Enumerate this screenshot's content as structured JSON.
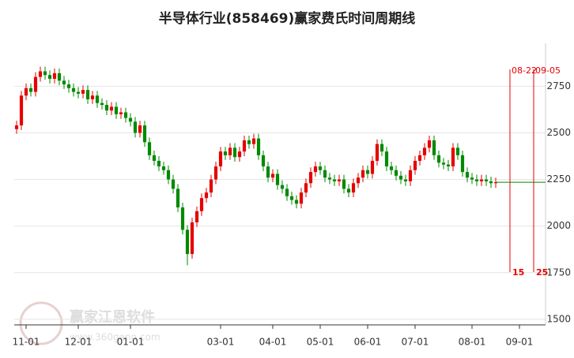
{
  "chart_data": {
    "type": "candlestick",
    "title": "半导体行业(858469)赢家费氏时间周期线",
    "watermark": {
      "brand": "赢家江恩软件",
      "url": "www.360gann.com"
    },
    "up_color": "#e60000",
    "down_color": "#008a00",
    "event_color": "#e60000",
    "grid": true,
    "ylim": [
      1470,
      2980
    ],
    "yticks": [
      1500,
      1750,
      2000,
      2250,
      2500,
      2750
    ],
    "categories": [
      null,
      null,
      "11-01",
      null,
      null,
      null,
      null,
      null,
      null,
      null,
      null,
      null,
      null,
      "12-01",
      null,
      null,
      null,
      null,
      null,
      null,
      null,
      null,
      null,
      null,
      "01-01",
      null,
      null,
      null,
      null,
      null,
      null,
      null,
      null,
      null,
      null,
      null,
      null,
      null,
      null,
      null,
      null,
      null,
      null,
      "03-01",
      null,
      null,
      null,
      null,
      null,
      null,
      null,
      null,
      null,
      null,
      "04-01",
      null,
      null,
      null,
      null,
      null,
      null,
      null,
      null,
      null,
      "05-01",
      null,
      null,
      null,
      null,
      null,
      null,
      null,
      null,
      null,
      "06-01",
      null,
      null,
      null,
      null,
      null,
      null,
      null,
      null,
      null,
      "07-01",
      null,
      null,
      null,
      null,
      null,
      null,
      null,
      null,
      null,
      null,
      null,
      "08-01",
      null,
      null,
      null,
      null,
      null,
      null,
      null,
      "08-22",
      null,
      "09-01",
      null,
      null,
      "09-05",
      null,
      null
    ],
    "open": [
      2520,
      2540,
      2700,
      2740,
      2720,
      2800,
      2830,
      2810,
      2790,
      2820,
      2780,
      2760,
      2740,
      2720,
      2710,
      2730,
      2680,
      2700,
      2660,
      2650,
      2620,
      2640,
      2600,
      2610,
      2580,
      2560,
      2500,
      2540,
      2450,
      2380,
      2350,
      2320,
      2300,
      2250,
      2200,
      2100,
      1980,
      1850,
      2020,
      2080,
      2150,
      2180,
      2250,
      2320,
      2400,
      2380,
      2420,
      2370,
      2400,
      2460,
      2440,
      2470,
      2380,
      2320,
      2260,
      2280,
      2220,
      2200,
      2160,
      2140,
      2120,
      2180,
      2230,
      2290,
      2320,
      2300,
      2260,
      2250,
      2240,
      2250,
      2200,
      2180,
      2230,
      2260,
      2300,
      2280,
      2350,
      2440,
      2400,
      2320,
      2300,
      2270,
      2250,
      2240,
      2300,
      2350,
      2380,
      2420,
      2460,
      2380,
      2340,
      2330,
      2320,
      2420,
      2380,
      2290,
      2260,
      2250,
      2240,
      2250,
      2240,
      2230,
      null,
      null,
      null,
      null,
      null,
      null,
      null,
      null,
      null,
      null
    ],
    "high": [
      2565,
      2725,
      2765,
      2765,
      2825,
      2855,
      2855,
      2835,
      2845,
      2845,
      2805,
      2785,
      2765,
      2745,
      2755,
      2755,
      2725,
      2725,
      2685,
      2675,
      2665,
      2665,
      2635,
      2635,
      2605,
      2585,
      2565,
      2565,
      2475,
      2405,
      2375,
      2345,
      2325,
      2275,
      2225,
      2125,
      2005,
      2045,
      2105,
      2175,
      2205,
      2275,
      2345,
      2425,
      2425,
      2445,
      2445,
      2425,
      2485,
      2485,
      2495,
      2495,
      2405,
      2345,
      2305,
      2305,
      2245,
      2225,
      2185,
      2165,
      2205,
      2255,
      2315,
      2345,
      2345,
      2325,
      2285,
      2275,
      2275,
      2275,
      2225,
      2255,
      2285,
      2325,
      2325,
      2375,
      2465,
      2465,
      2425,
      2345,
      2325,
      2295,
      2275,
      2325,
      2375,
      2405,
      2445,
      2485,
      2485,
      2405,
      2365,
      2355,
      2445,
      2445,
      2405,
      2315,
      2285,
      2275,
      2275,
      2275,
      2265,
      2260,
      null,
      null,
      null,
      null,
      null,
      null,
      null,
      null,
      null,
      null
    ],
    "low": [
      2495,
      2515,
      2675,
      2695,
      2695,
      2775,
      2785,
      2765,
      2765,
      2755,
      2735,
      2715,
      2695,
      2685,
      2685,
      2655,
      2655,
      2635,
      2625,
      2595,
      2595,
      2575,
      2575,
      2555,
      2535,
      2475,
      2475,
      2425,
      2355,
      2325,
      2295,
      2275,
      2225,
      2175,
      2075,
      1955,
      1790,
      1825,
      1995,
      2055,
      2125,
      2155,
      2225,
      2295,
      2355,
      2355,
      2345,
      2345,
      2375,
      2415,
      2415,
      2355,
      2295,
      2235,
      2235,
      2195,
      2175,
      2135,
      2115,
      2095,
      2095,
      2155,
      2205,
      2265,
      2275,
      2235,
      2225,
      2215,
      2215,
      2175,
      2155,
      2155,
      2205,
      2235,
      2255,
      2255,
      2325,
      2375,
      2295,
      2275,
      2245,
      2225,
      2215,
      2215,
      2275,
      2325,
      2355,
      2395,
      2355,
      2315,
      2305,
      2295,
      2295,
      2355,
      2265,
      2235,
      2225,
      2215,
      2215,
      2215,
      2205,
      2205,
      null,
      null,
      null,
      null,
      null,
      null,
      null,
      null,
      null,
      null
    ],
    "close": [
      2540,
      2700,
      2740,
      2720,
      2800,
      2830,
      2810,
      2790,
      2820,
      2780,
      2760,
      2740,
      2720,
      2710,
      2730,
      2680,
      2700,
      2660,
      2650,
      2620,
      2640,
      2600,
      2610,
      2580,
      2560,
      2500,
      2540,
      2450,
      2380,
      2350,
      2320,
      2300,
      2250,
      2200,
      2100,
      1980,
      1850,
      2020,
      2080,
      2150,
      2180,
      2250,
      2320,
      2400,
      2380,
      2420,
      2370,
      2400,
      2460,
      2440,
      2470,
      2380,
      2320,
      2260,
      2280,
      2220,
      2200,
      2160,
      2140,
      2120,
      2180,
      2230,
      2290,
      2320,
      2300,
      2260,
      2250,
      2240,
      2250,
      2200,
      2180,
      2230,
      2260,
      2300,
      2280,
      2350,
      2440,
      2400,
      2320,
      2300,
      2270,
      2250,
      2240,
      2300,
      2350,
      2380,
      2420,
      2460,
      2380,
      2340,
      2330,
      2320,
      2420,
      2380,
      2290,
      2260,
      2250,
      2240,
      2250,
      2240,
      2230,
      2235,
      null,
      null,
      null,
      null,
      null,
      null,
      null,
      null,
      null,
      null
    ],
    "event_lines": [
      {
        "date": "08-22",
        "count": 15
      },
      {
        "date": "09-05",
        "count": 25
      }
    ]
  }
}
